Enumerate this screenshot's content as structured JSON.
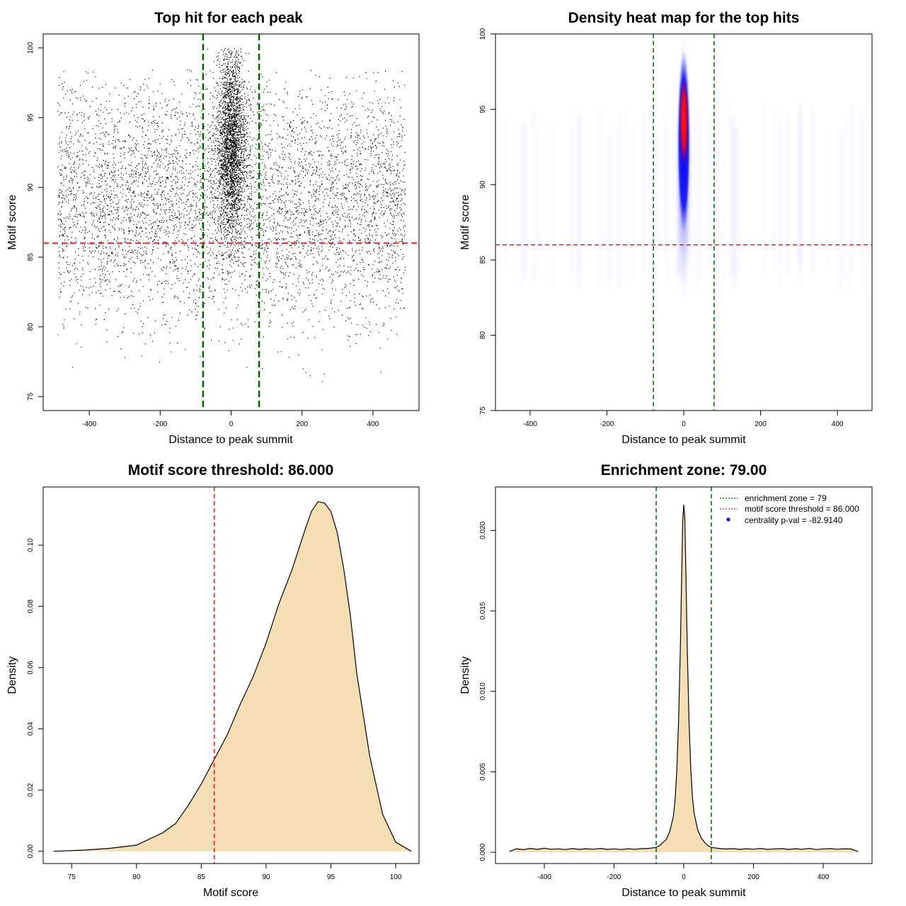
{
  "chart_data": [
    {
      "type": "scatter",
      "title": "Top hit for each peak",
      "xlabel": "Distance to peak summit",
      "ylabel": "Motif score",
      "xlim": [
        -530,
        530
      ],
      "ylim": [
        74,
        101
      ],
      "xticks": [
        -400,
        -200,
        0,
        200,
        400
      ],
      "yticks": [
        75,
        80,
        85,
        90,
        95,
        100
      ],
      "vlines": [
        -79,
        79
      ],
      "hline": 86,
      "colors": {
        "points": "#000000",
        "vline": "#006400",
        "hline": "#dd2222"
      },
      "points": {
        "background": {
          "x_range": [
            -490,
            490
          ],
          "y_range": [
            75,
            99
          ],
          "approx_count": 9000
        },
        "central_cluster": {
          "x_center": 0,
          "x_spread": 20,
          "y_range": [
            82,
            100
          ],
          "y_peak": 93,
          "approx_count": 15000
        }
      }
    },
    {
      "type": "heatmap",
      "title": "Density heat map for the top hits",
      "xlabel": "Distance to peak summit",
      "ylabel": "Motif score",
      "xlim": [
        -490,
        490
      ],
      "ylim": [
        75,
        100
      ],
      "xticks": [
        -400,
        -200,
        0,
        200,
        400
      ],
      "yticks": [
        75,
        80,
        85,
        90,
        95,
        100
      ],
      "vlines": [
        -79,
        79
      ],
      "hline": 86,
      "colors": {
        "low": "#ffffff",
        "mid": "#0000ff",
        "high": "#ff0000",
        "vline": "#006400",
        "hline": "#dd2222"
      },
      "hotspot": {
        "x": 0,
        "y": 94.2,
        "x_extent": 10,
        "y_extent": [
          81,
          99.5
        ]
      }
    },
    {
      "type": "area",
      "title": "Motif score threshold: 86.000",
      "xlabel": "Motif score",
      "ylabel": "Density",
      "xlim": [
        72.8,
        101.8
      ],
      "ylim": [
        -0.004,
        0.119
      ],
      "xticks": [
        75,
        80,
        85,
        90,
        95,
        100
      ],
      "yticks": [
        0.0,
        0.02,
        0.04,
        0.06,
        0.08,
        0.1
      ],
      "ytick_labels": [
        "0.00",
        "0.02",
        "0.04",
        "0.06",
        "0.08",
        "0.10"
      ],
      "vline": 86,
      "colors": {
        "fill": "#f5deb3",
        "line": "#000000",
        "vline": "#dd2222"
      },
      "x": [
        73.6,
        76,
        78,
        80,
        81,
        82,
        83,
        84,
        85,
        86,
        87,
        88,
        89,
        90,
        91,
        92,
        93,
        93.5,
        94,
        94.5,
        95,
        95.5,
        96,
        96.5,
        97,
        98,
        99,
        100,
        101.2
      ],
      "y": [
        0.0,
        0.0004,
        0.001,
        0.002,
        0.004,
        0.006,
        0.009,
        0.015,
        0.022,
        0.03,
        0.038,
        0.048,
        0.057,
        0.068,
        0.081,
        0.092,
        0.105,
        0.111,
        0.1142,
        0.1138,
        0.111,
        0.104,
        0.092,
        0.077,
        0.058,
        0.031,
        0.012,
        0.003,
        0.0
      ]
    },
    {
      "type": "area",
      "title": "Enrichment zone: 79.00",
      "xlabel": "Distance to peak summit",
      "ylabel": "Density",
      "xlim": [
        -540,
        540
      ],
      "ylim": [
        -0.0007,
        0.0227
      ],
      "xticks": [
        -400,
        -200,
        0,
        200,
        400
      ],
      "yticks": [
        0.0,
        0.005,
        0.01,
        0.015,
        0.02
      ],
      "ytick_labels": [
        "0.000",
        "0.005",
        "0.010",
        "0.015",
        "0.020"
      ],
      "vlines": [
        -79,
        79
      ],
      "colors": {
        "fill": "#f5deb3",
        "line": "#000000",
        "vline": "#006400",
        "legend_threshold": "#dd2222",
        "legend_pval": "#0000ff"
      },
      "x": [
        -500,
        -480,
        -460,
        -440,
        -420,
        -400,
        -380,
        -360,
        -340,
        -320,
        -300,
        -280,
        -260,
        -240,
        -220,
        -200,
        -180,
        -160,
        -140,
        -120,
        -100,
        -80,
        -70,
        -60,
        -50,
        -40,
        -30,
        -25,
        -20,
        -15,
        -10,
        -6,
        -3,
        0,
        3,
        6,
        10,
        15,
        20,
        25,
        30,
        40,
        50,
        60,
        70,
        80,
        100,
        120,
        140,
        160,
        180,
        200,
        220,
        240,
        260,
        280,
        300,
        320,
        340,
        360,
        380,
        400,
        420,
        440,
        460,
        480,
        500
      ],
      "y": [
        5e-05,
        0.00022,
        0.00016,
        0.00024,
        0.00018,
        0.00025,
        0.00019,
        0.00021,
        0.00017,
        0.00023,
        0.00018,
        0.00022,
        0.00019,
        0.00024,
        0.00018,
        0.00021,
        0.00017,
        0.00022,
        0.00019,
        0.00023,
        0.00024,
        0.0003,
        0.0004,
        0.0006,
        0.0008,
        0.0013,
        0.0022,
        0.0032,
        0.005,
        0.008,
        0.0125,
        0.017,
        0.0205,
        0.0216,
        0.0208,
        0.0175,
        0.0128,
        0.0082,
        0.0052,
        0.0034,
        0.0024,
        0.0014,
        0.0009,
        0.0006,
        0.0004,
        0.0003,
        0.00024,
        0.0002,
        0.00023,
        0.00018,
        0.00022,
        0.00019,
        0.00024,
        0.00018,
        0.00021,
        0.00023,
        0.00018,
        0.00022,
        0.00019,
        0.00024,
        0.00017,
        0.00021,
        0.00023,
        0.00019,
        0.00022,
        0.0002,
        5e-05
      ],
      "legend": [
        {
          "label": "enrichment zone = 79",
          "style": "dotted-line",
          "color": "#006400"
        },
        {
          "label": "motif score threshold = 86.000",
          "style": "dotted-line",
          "color": "#dd2222"
        },
        {
          "label": "centrality p-val = -82.9140",
          "style": "point",
          "color": "#0000ff"
        }
      ],
      "legend_position": "top-right"
    }
  ]
}
